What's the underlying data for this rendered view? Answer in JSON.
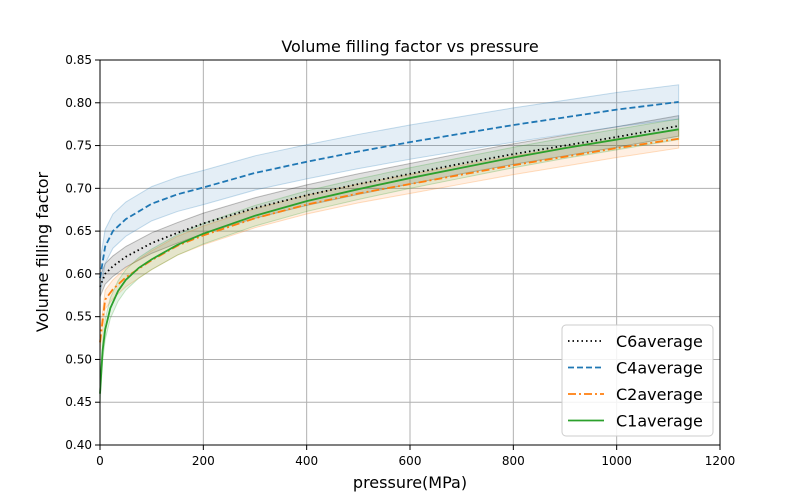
{
  "chart_data": {
    "type": "line",
    "title": "Volume filling factor vs pressure",
    "xlabel": "pressure(MPa)",
    "ylabel": "Volume filling factor",
    "xlim": [
      0,
      1200
    ],
    "ylim": [
      0.4,
      0.85
    ],
    "xticks": [
      0,
      200,
      400,
      600,
      800,
      1000,
      1200
    ],
    "yticks": [
      0.4,
      0.45,
      0.5,
      0.55,
      0.6,
      0.65,
      0.7,
      0.75,
      0.8,
      0.85
    ],
    "ytick_labels": [
      "0.40",
      "0.45",
      "0.50",
      "0.55",
      "0.60",
      "0.65",
      "0.70",
      "0.75",
      "0.80",
      "0.85"
    ],
    "xtick_labels": [
      "0",
      "200",
      "400",
      "600",
      "800",
      "1000",
      "1200"
    ],
    "grid": true,
    "legend_position": "lower-right",
    "series": [
      {
        "name": "C6average",
        "color": "#000000",
        "style": "dotted",
        "x": [
          0,
          10,
          25,
          50,
          100,
          150,
          200,
          300,
          400,
          500,
          600,
          700,
          800,
          900,
          1000,
          1120
        ],
        "y": [
          0.585,
          0.6,
          0.609,
          0.62,
          0.636,
          0.648,
          0.659,
          0.677,
          0.692,
          0.705,
          0.717,
          0.729,
          0.74,
          0.75,
          0.76,
          0.773
        ],
        "band": 0.012
      },
      {
        "name": "C4average",
        "color": "#1f77b4",
        "style": "dashed",
        "x": [
          0,
          10,
          25,
          50,
          100,
          150,
          200,
          300,
          400,
          500,
          600,
          700,
          800,
          900,
          1000,
          1120
        ],
        "y": [
          0.595,
          0.632,
          0.65,
          0.664,
          0.682,
          0.693,
          0.701,
          0.718,
          0.731,
          0.743,
          0.754,
          0.764,
          0.774,
          0.783,
          0.792,
          0.801
        ],
        "band": 0.02
      },
      {
        "name": "C2average",
        "color": "#ff7f0e",
        "style": "dashdot",
        "x": [
          0,
          10,
          25,
          50,
          100,
          150,
          200,
          300,
          400,
          500,
          600,
          700,
          800,
          900,
          1000,
          1120
        ],
        "y": [
          0.52,
          0.57,
          0.582,
          0.596,
          0.616,
          0.633,
          0.645,
          0.665,
          0.681,
          0.694,
          0.705,
          0.716,
          0.727,
          0.737,
          0.747,
          0.758
        ],
        "band": 0.011
      },
      {
        "name": "C1average",
        "color": "#2ca02c",
        "style": "solid",
        "x": [
          0,
          5,
          10,
          20,
          35,
          50,
          75,
          100,
          150,
          200,
          300,
          400,
          500,
          600,
          700,
          800,
          900,
          1000,
          1120
        ],
        "y": [
          0.46,
          0.51,
          0.535,
          0.56,
          0.58,
          0.593,
          0.607,
          0.617,
          0.634,
          0.647,
          0.668,
          0.685,
          0.699,
          0.712,
          0.724,
          0.736,
          0.747,
          0.757,
          0.769
        ],
        "band": 0.012
      }
    ]
  }
}
